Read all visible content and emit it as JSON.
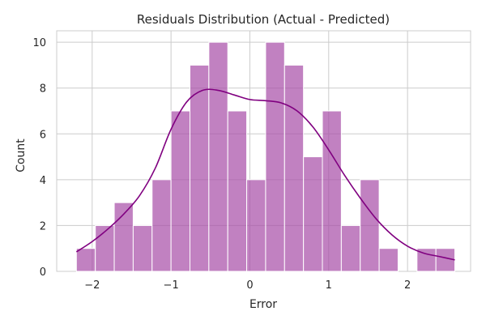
{
  "chart_data": {
    "type": "bar",
    "title": "Residuals Distribution (Actual - Predicted)",
    "xlabel": "Error",
    "ylabel": "Count",
    "xlim": [
      -2.45,
      2.8
    ],
    "ylim": [
      0,
      10.5
    ],
    "x_ticks": [
      -2,
      -1,
      0,
      1,
      2
    ],
    "x_tick_labels": [
      "−2",
      "−1",
      "0",
      "1",
      "2"
    ],
    "y_ticks": [
      0,
      2,
      4,
      6,
      8,
      10
    ],
    "y_tick_labels": [
      "0",
      "2",
      "4",
      "6",
      "8",
      "10"
    ],
    "grid": true,
    "bins": {
      "start": -2.2,
      "width": 0.24,
      "counts": [
        1,
        2,
        3,
        2,
        4,
        7,
        9,
        10,
        7,
        4,
        10,
        9,
        5,
        7,
        2,
        4,
        1,
        0,
        1,
        1
      ]
    },
    "series": [
      {
        "type": "line",
        "x": [
          -2.2,
          -2.0,
          -1.8,
          -1.6,
          -1.4,
          -1.2,
          -1.0,
          -0.8,
          -0.6,
          -0.4,
          -0.2,
          0.0,
          0.2,
          0.4,
          0.6,
          0.8,
          1.0,
          1.2,
          1.4,
          1.6,
          1.8,
          2.0,
          2.2,
          2.4,
          2.6
        ],
        "y": [
          0.85,
          1.3,
          1.85,
          2.5,
          3.3,
          4.5,
          6.2,
          7.4,
          7.9,
          7.9,
          7.7,
          7.5,
          7.45,
          7.35,
          7.0,
          6.3,
          5.3,
          4.2,
          3.2,
          2.3,
          1.6,
          1.1,
          0.8,
          0.65,
          0.5
        ]
      }
    ],
    "colors": {
      "bar": "#a64ca6",
      "kde": "#800080",
      "grid": "#cccccc"
    }
  }
}
